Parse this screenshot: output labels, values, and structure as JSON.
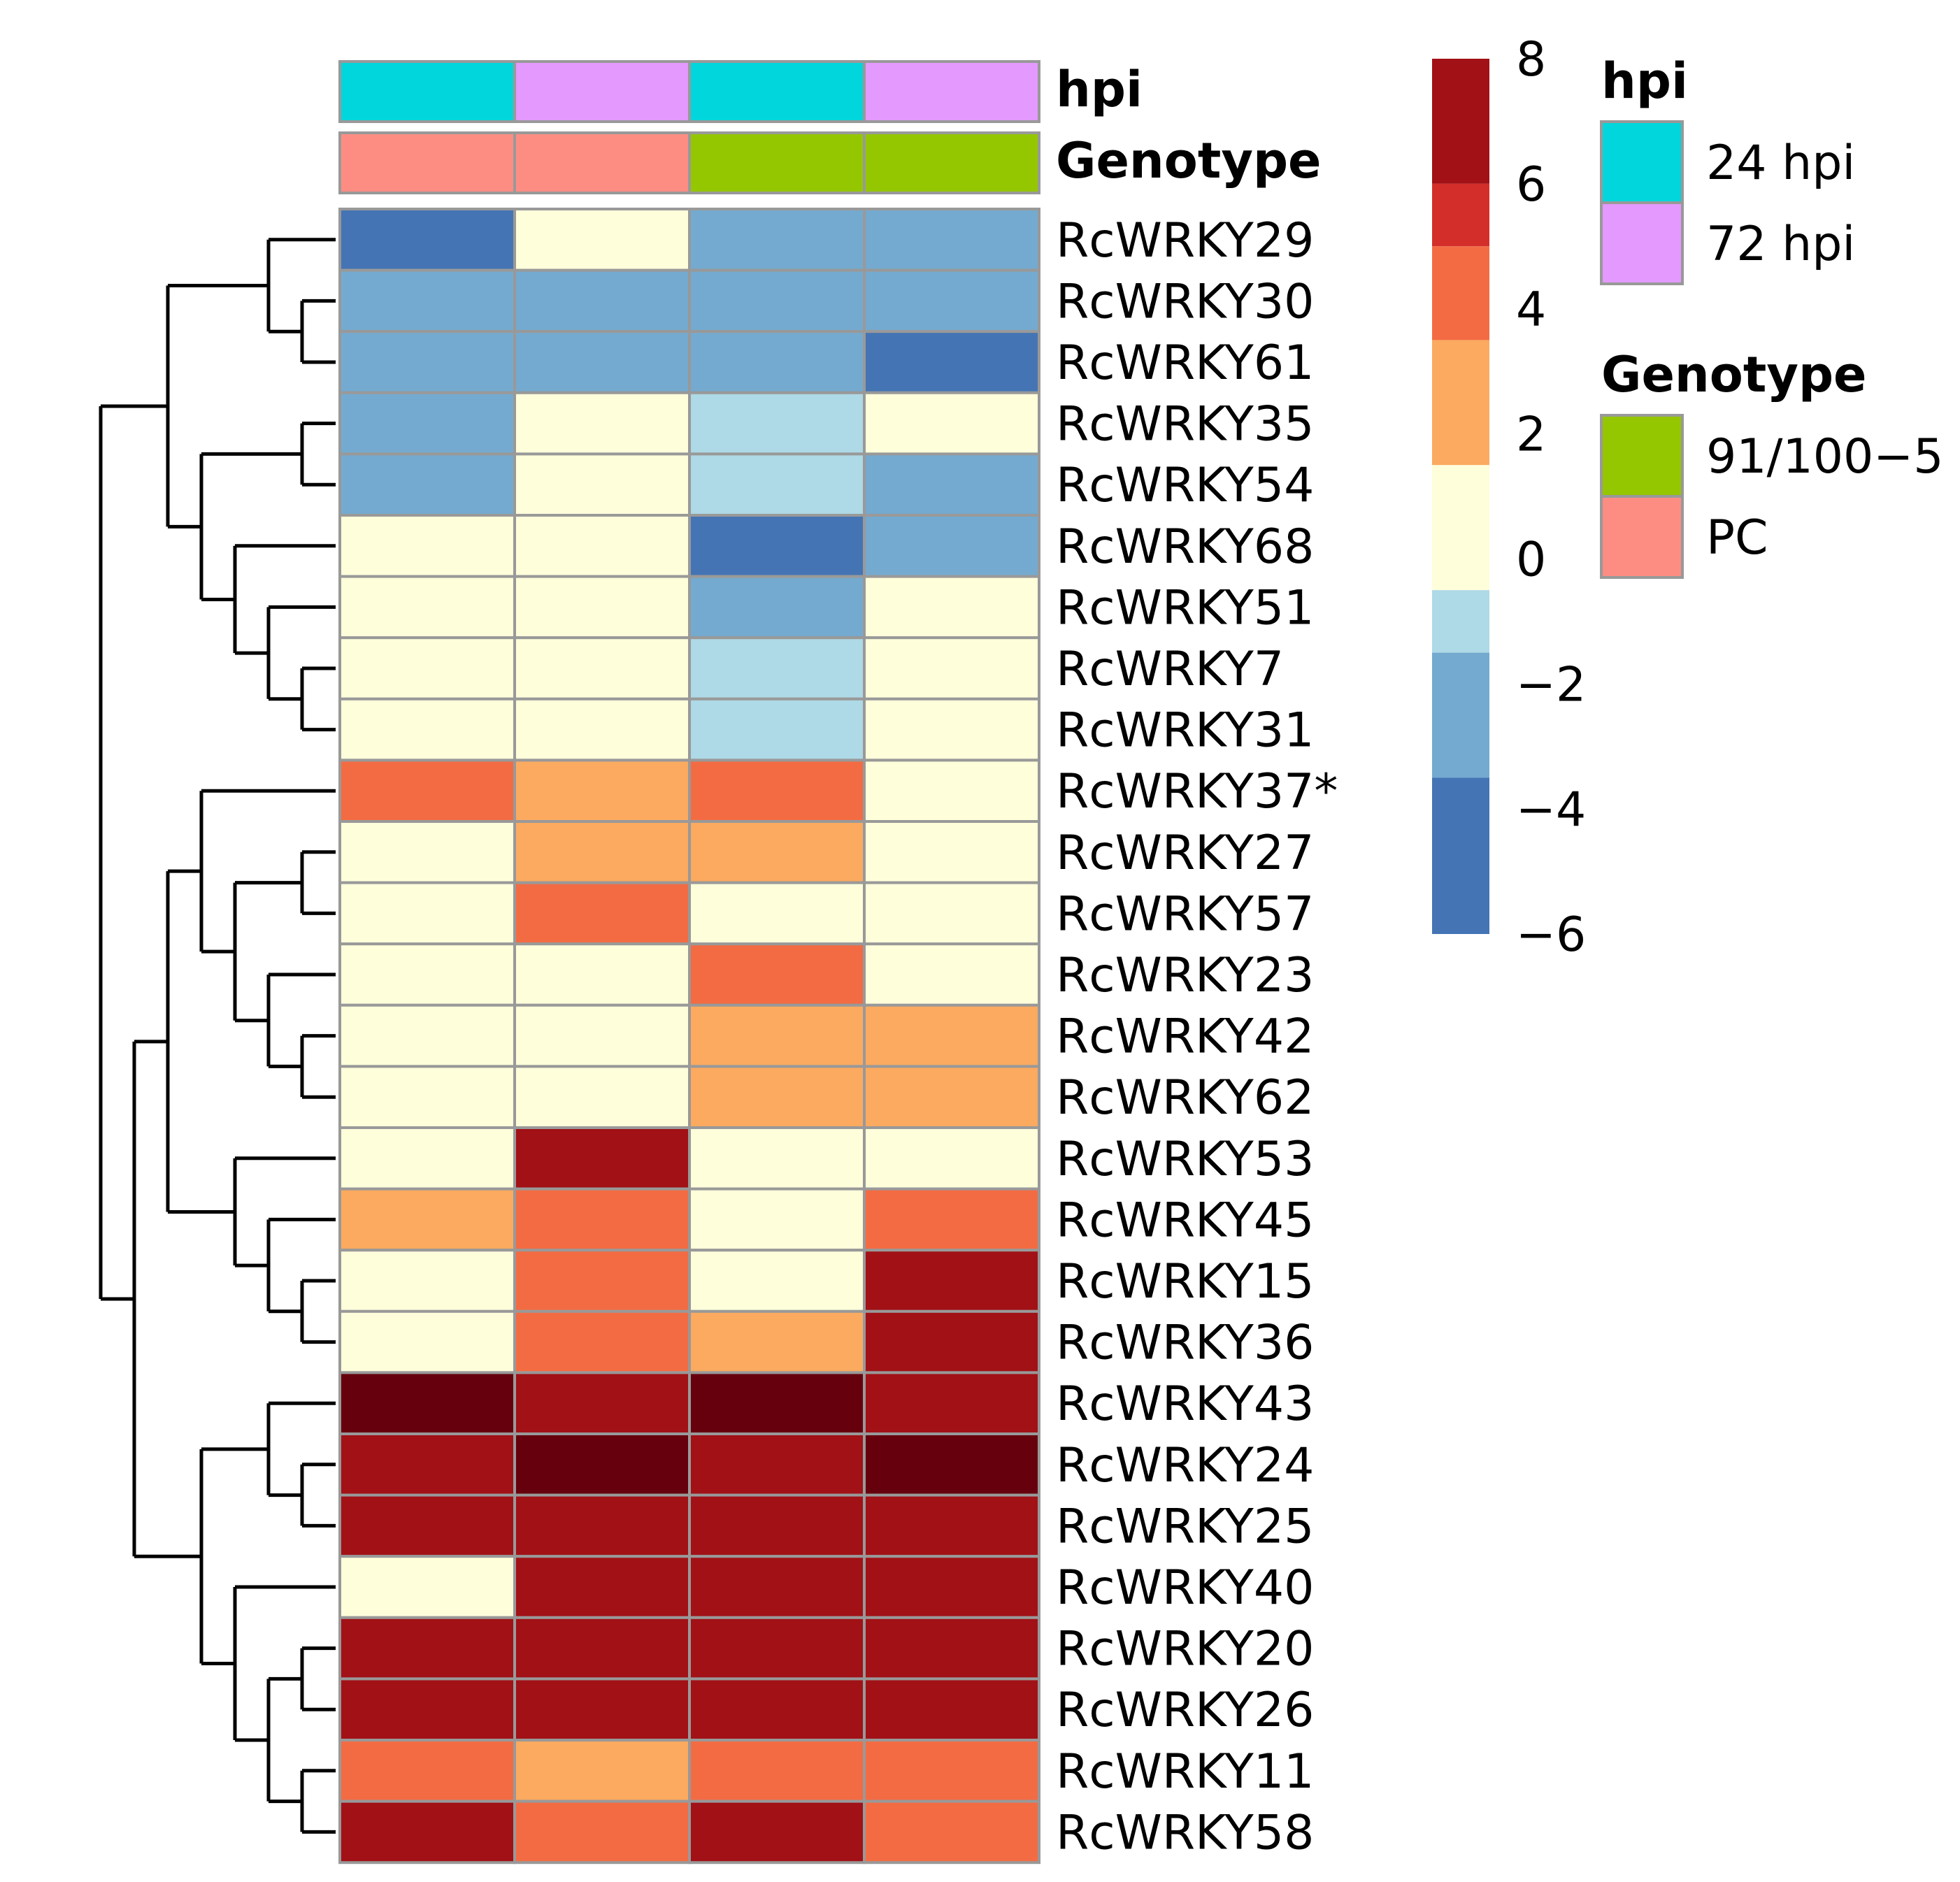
{
  "chart_data": {
    "type": "heatmap",
    "rows": [
      "RcWRKY29",
      "RcWRKY30",
      "RcWRKY61",
      "RcWRKY35",
      "RcWRKY54",
      "RcWRKY68",
      "RcWRKY51",
      "RcWRKY7",
      "RcWRKY31",
      "RcWRKY37*",
      "RcWRKY27",
      "RcWRKY57",
      "RcWRKY23",
      "RcWRKY42",
      "RcWRKY62",
      "RcWRKY53",
      "RcWRKY45",
      "RcWRKY15",
      "RcWRKY36",
      "RcWRKY43",
      "RcWRKY24",
      "RcWRKY25",
      "RcWRKY40",
      "RcWRKY20",
      "RcWRKY26",
      "RcWRKY11",
      "RcWRKY58"
    ],
    "columns": [
      {
        "hpi": "24 hpi",
        "genotype": "PC"
      },
      {
        "hpi": "72 hpi",
        "genotype": "PC"
      },
      {
        "hpi": "24 hpi",
        "genotype": "91/100−5"
      },
      {
        "hpi": "72 hpi",
        "genotype": "91/100−5"
      }
    ],
    "values": [
      [
        -5,
        0,
        -3,
        -3
      ],
      [
        -3,
        -3,
        -3,
        -3
      ],
      [
        -3,
        -3,
        -3,
        -5
      ],
      [
        -3,
        0,
        -1.5,
        0
      ],
      [
        -3,
        0,
        -1.5,
        -3
      ],
      [
        0,
        0,
        -5,
        -3
      ],
      [
        0,
        0,
        -3,
        0
      ],
      [
        0,
        0,
        -1.5,
        0
      ],
      [
        0,
        0,
        -1.5,
        0
      ],
      [
        4,
        2,
        4,
        0
      ],
      [
        0,
        2,
        2,
        0
      ],
      [
        0,
        4,
        0,
        0
      ],
      [
        0,
        0,
        4,
        0
      ],
      [
        0,
        0,
        2,
        2
      ],
      [
        0,
        0,
        2,
        2
      ],
      [
        0,
        6,
        0,
        0
      ],
      [
        2,
        4,
        0,
        4
      ],
      [
        0,
        4,
        0,
        6
      ],
      [
        0,
        4,
        2,
        6
      ],
      [
        8,
        6,
        8,
        6
      ],
      [
        7,
        8,
        7,
        8
      ],
      [
        7,
        7,
        7,
        7
      ],
      [
        0,
        7,
        7,
        7
      ],
      [
        6,
        7,
        6,
        7
      ],
      [
        7,
        7,
        6,
        6
      ],
      [
        4,
        2,
        4,
        4
      ],
      [
        6,
        4,
        6,
        4
      ]
    ],
    "annotation_titles": {
      "hpi": "hpi",
      "genotype": "Genotype"
    },
    "color_scale": {
      "ticks": [
        "8",
        "6",
        "4",
        "2",
        "0",
        "−2",
        "−4",
        "−6"
      ],
      "range": [
        -6,
        8
      ],
      "bands": [
        {
          "from": 6,
          "to": 8,
          "color": "#a11116"
        },
        {
          "from": 5,
          "to": 6,
          "color": "#d42e2a"
        },
        {
          "from": 3.5,
          "to": 5,
          "color": "#f36b43"
        },
        {
          "from": 1.5,
          "to": 3.5,
          "color": "#fbaa60"
        },
        {
          "from": -0.5,
          "to": 1.5,
          "color": "#fefedb"
        },
        {
          "from": -1.5,
          "to": -0.5,
          "color": "#aed9e6"
        },
        {
          "from": -3.5,
          "to": -1.5,
          "color": "#74aacf"
        },
        {
          "from": -6,
          "to": -3.5,
          "color": "#4474b4"
        }
      ],
      "extreme_color": "#67000d"
    },
    "legends": {
      "hpi": {
        "title": "hpi",
        "items": [
          {
            "label": "24 hpi",
            "color": "#00d6dc"
          },
          {
            "label": "72 hpi",
            "color": "#e399fe"
          }
        ]
      },
      "genotype": {
        "title": "Genotype",
        "items": [
          {
            "label": "91/100−5",
            "color": "#94c700"
          },
          {
            "label": "PC",
            "color": "#fd8d83"
          }
        ]
      }
    },
    "grid_color": "#999999",
    "dendrogram": "rows",
    "tree": [
      [
        [
          [
            [
              0,
              [
                1,
                2
              ]
            ],
            [
              [
                3,
                4
              ],
              [
                5,
                [
                  6,
                  [
                    7,
                    8
                  ]
                ]
              ]
            ]
          ],
          [
            [
              [
                9,
                [
                  [
                    10,
                    11
                  ],
                  [
                    12,
                    [
                      13,
                      14
                    ]
                  ]
                ]
              ],
              [
                15,
                [
                  16,
                  [
                    17,
                    18
                  ]
                ]
              ]
            ],
            [
              [
                19,
                [
                  20,
                  21
                ]
              ],
              [
                22,
                [
                  [
                    23,
                    24
                  ],
                  [
                    25,
                    26
                  ]
                ]
              ]
            ]
          ]
        ]
      ]
    ]
  }
}
